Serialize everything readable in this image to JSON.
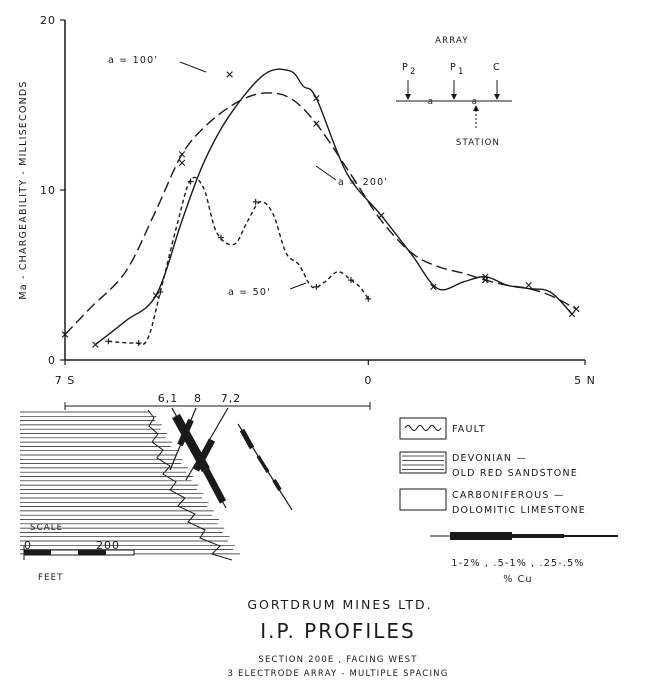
{
  "chart_data": {
    "type": "line",
    "ylabel": "Ma - CHARGEABILITY - MILLISECONDS",
    "ylim": [
      0,
      20
    ],
    "xlim": [
      -7,
      5
    ],
    "y_ticks": [
      "0",
      "10",
      "20"
    ],
    "x_ticks": [
      {
        "pos": -7,
        "label": "7 S"
      },
      {
        "pos": 0,
        "label": "0"
      },
      {
        "pos": 5,
        "label": "5 N"
      }
    ],
    "series": [
      {
        "name": "a = 100'",
        "style": "solid",
        "marker": "x",
        "x": [
          -6.3,
          -5.6,
          -4.9,
          -4.3,
          -3.8,
          -3.2,
          -2.4,
          -1.8,
          -1.5,
          -1.2,
          -0.5,
          0.3,
          1.0,
          1.6,
          2.2,
          2.7,
          3.2,
          3.7,
          4.2,
          4.7
        ],
        "y": [
          0.9,
          2.3,
          3.8,
          8.2,
          11.6,
          14.4,
          16.8,
          17.0,
          16.1,
          15.4,
          11.0,
          8.5,
          6.2,
          4.2,
          4.6,
          4.9,
          4.4,
          4.2,
          4.0,
          2.7
        ],
        "markers_x": [
          -6.3,
          -4.9,
          -4.3,
          -3.2,
          -1.2,
          0.3,
          1.5,
          2.7,
          3.7,
          4.7
        ],
        "markers_y": [
          0.9,
          3.8,
          11.6,
          16.8,
          15.4,
          8.5,
          4.3,
          4.9,
          4.4,
          2.7
        ]
      },
      {
        "name": "a = 200'",
        "style": "long-dash",
        "marker": "x",
        "x": [
          -7.0,
          -6.4,
          -5.6,
          -4.9,
          -4.3,
          -3.7,
          -3.0,
          -2.4,
          -1.8,
          -1.2,
          -0.4,
          0.3,
          1.0,
          1.6,
          2.2,
          2.7,
          3.2,
          3.7,
          4.2,
          4.8
        ],
        "y": [
          1.5,
          3.1,
          5.2,
          8.8,
          12.1,
          13.9,
          15.2,
          15.7,
          15.4,
          13.9,
          10.9,
          8.2,
          6.3,
          5.5,
          5.1,
          4.7,
          4.4,
          4.2,
          3.8,
          3.0
        ],
        "markers_x": [
          -7.0,
          -4.3,
          -1.2,
          2.7,
          4.8
        ],
        "markers_y": [
          1.5,
          12.1,
          13.9,
          4.7,
          3.0
        ]
      },
      {
        "name": "a = 50'",
        "style": "short-dash",
        "marker": "+",
        "x": [
          -6.0,
          -5.4,
          -5.1,
          -4.8,
          -4.4,
          -4.1,
          -3.8,
          -3.5,
          -3.1,
          -2.8,
          -2.5,
          -2.2,
          -1.9,
          -1.6,
          -1.3,
          -1.0,
          -0.7,
          -0.4,
          -0.2,
          0.0
        ],
        "y": [
          1.1,
          1.0,
          1.2,
          4.0,
          8.1,
          10.6,
          10.1,
          7.5,
          6.8,
          8.1,
          9.3,
          8.6,
          6.3,
          5.6,
          4.3,
          4.6,
          5.2,
          4.7,
          4.3,
          3.6
        ],
        "markers_x": [
          -6.0,
          -5.3,
          -4.8,
          -4.1,
          -3.4,
          -2.6,
          -1.2,
          -0.4,
          0.0
        ],
        "markers_y": [
          1.1,
          1.0,
          4.0,
          10.5,
          7.2,
          9.3,
          4.3,
          4.7,
          3.6
        ]
      }
    ],
    "grid": false,
    "legend": "labels on curves"
  },
  "array_diagram": {
    "title": "ARRAY",
    "p2": "P",
    "p2_sub": "2",
    "p1": "P",
    "p1_sub": "1",
    "c": "C",
    "a1": "a",
    "a2": "a",
    "station": "STATION"
  },
  "section": {
    "drill_labels": [
      "6,1",
      "8",
      "7,2"
    ],
    "scale_title": "SCALE",
    "scale_zero": "0",
    "scale_max": "200",
    "scale_unit": "FEET"
  },
  "legend": {
    "fault": "FAULT",
    "devonian_1": "DEVONIAN —",
    "devonian_2": "OLD RED SANDSTONE",
    "carb_1": "CARBONIFEROUS —",
    "carb_2": "DOLOMITIC LIMESTONE",
    "cu_ranges": "1-2% , .5-1% , .25-.5%",
    "cu_unit": "% Cu"
  },
  "footer": {
    "company": "GORTDRUM MINES LTD.",
    "title": "I.P. PROFILES",
    "line1": "SECTION 200E , FACING WEST",
    "line2": "3 ELECTRODE ARRAY - MULTIPLE SPACING"
  }
}
